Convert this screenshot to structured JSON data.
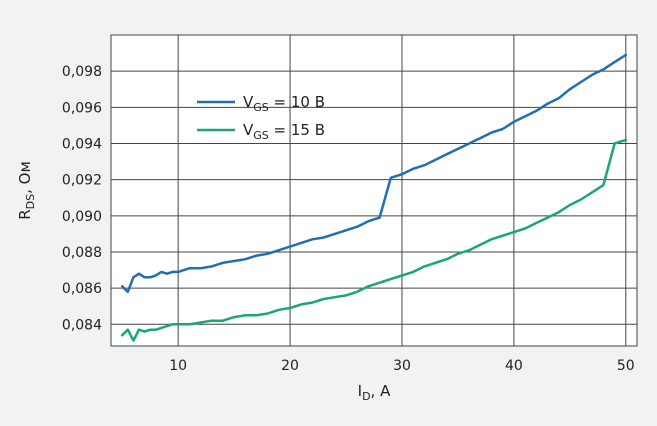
{
  "chart_data": {
    "type": "line",
    "xlabel": {
      "main": "I",
      "sub": "D",
      "rest": ", A"
    },
    "ylabel": {
      "main": "R",
      "sub": "DS",
      "rest": ", Ом"
    },
    "xlim": [
      4,
      51
    ],
    "ylim": [
      0.0828,
      0.1
    ],
    "xticks": [
      10,
      20,
      30,
      40,
      50
    ],
    "xtick_labels": [
      "10",
      "20",
      "30",
      "40",
      "50"
    ],
    "yticks": [
      0.084,
      0.086,
      0.088,
      0.09,
      0.092,
      0.094,
      0.096,
      0.098
    ],
    "ytick_labels": [
      "0,084",
      "0,086",
      "0,088",
      "0,090",
      "0,092",
      "0,094",
      "0,096",
      "0,098"
    ],
    "grid": true,
    "legend_position": "top-left",
    "series": [
      {
        "name": {
          "main": "V",
          "sub": "GS",
          "rest": " = 10 В"
        },
        "color": "#1f6fb2",
        "x": [
          5,
          5.5,
          6,
          6.5,
          7,
          7.5,
          8,
          8.5,
          9,
          9.5,
          10,
          11,
          12,
          13,
          14,
          15,
          16,
          17,
          18,
          19,
          20,
          21,
          22,
          23,
          24,
          25,
          26,
          27,
          28,
          29,
          30,
          31,
          32,
          33,
          34,
          35,
          36,
          37,
          38,
          39,
          40,
          41,
          42,
          43,
          44,
          45,
          46,
          47,
          48,
          49,
          50
        ],
        "y": [
          0.0861,
          0.0858,
          0.0866,
          0.0868,
          0.0866,
          0.0866,
          0.0867,
          0.0869,
          0.0868,
          0.0869,
          0.0869,
          0.0871,
          0.0871,
          0.0872,
          0.0874,
          0.0875,
          0.0876,
          0.0878,
          0.0879,
          0.0881,
          0.0883,
          0.0885,
          0.0887,
          0.0888,
          0.089,
          0.0892,
          0.0894,
          0.0897,
          0.0899,
          0.0921,
          0.0923,
          0.0926,
          0.0928,
          0.0931,
          0.0934,
          0.0937,
          0.094,
          0.0943,
          0.0946,
          0.0948,
          0.0952,
          0.0955,
          0.0958,
          0.0962,
          0.0965,
          0.097,
          0.0974,
          0.0978,
          0.0981,
          0.0985,
          0.0989
        ]
      },
      {
        "name": {
          "main": "V",
          "sub": "GS",
          "rest": " = 15 В"
        },
        "color": "#1aa57a",
        "x": [
          5,
          5.5,
          6,
          6.5,
          7,
          7.5,
          8,
          8.5,
          9,
          9.5,
          10,
          11,
          12,
          13,
          14,
          15,
          16,
          17,
          18,
          19,
          20,
          21,
          22,
          23,
          24,
          25,
          26,
          27,
          28,
          29,
          30,
          31,
          32,
          33,
          34,
          35,
          36,
          37,
          38,
          39,
          40,
          41,
          42,
          43,
          44,
          45,
          46,
          47,
          48,
          49,
          50
        ],
        "y": [
          0.0834,
          0.0837,
          0.0831,
          0.0837,
          0.0836,
          0.0837,
          0.0837,
          0.0838,
          0.0839,
          0.084,
          0.084,
          0.084,
          0.0841,
          0.0842,
          0.0842,
          0.0844,
          0.0845,
          0.0845,
          0.0846,
          0.0848,
          0.0849,
          0.0851,
          0.0852,
          0.0854,
          0.0855,
          0.0856,
          0.0858,
          0.0861,
          0.0863,
          0.0865,
          0.0867,
          0.0869,
          0.0872,
          0.0874,
          0.0876,
          0.0879,
          0.0881,
          0.0884,
          0.0887,
          0.0889,
          0.0891,
          0.0893,
          0.0896,
          0.0899,
          0.0902,
          0.0906,
          0.0909,
          0.0913,
          0.0917,
          0.094,
          0.0942
        ]
      }
    ]
  }
}
